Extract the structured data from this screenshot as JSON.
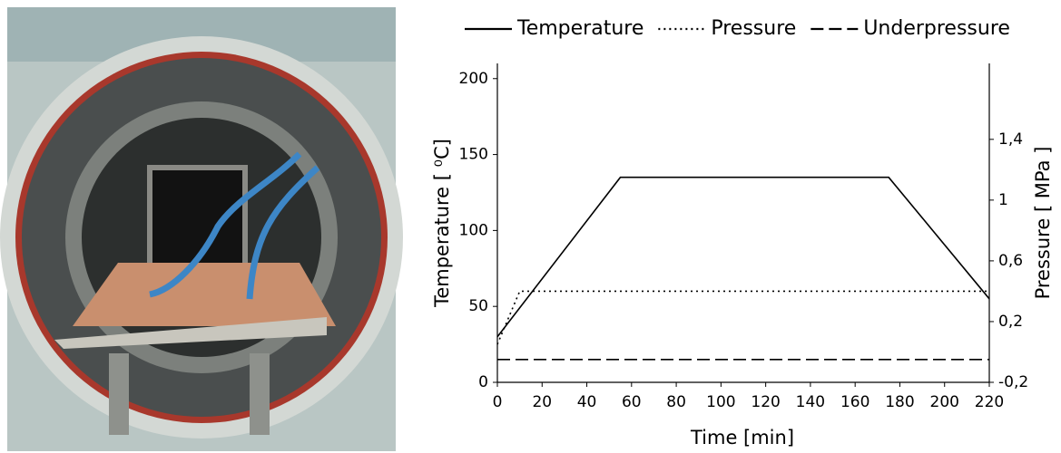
{
  "chart_data": {
    "type": "line",
    "xlabel": "Time [min]",
    "ylabel": "Temperature [ ⁰C]",
    "y2label": "Pressure [ MPa ]",
    "xlim": [
      0,
      220
    ],
    "xticks": [
      0,
      20,
      40,
      60,
      80,
      100,
      120,
      140,
      160,
      180,
      200,
      220
    ],
    "ylim": [
      0,
      210
    ],
    "yticks": [
      0,
      50,
      100,
      150,
      200
    ],
    "y2lim": [
      -0.2,
      1.9
    ],
    "y2ticks": [
      {
        "value": -0.2,
        "label": "-0,2"
      },
      {
        "value": 0.2,
        "label": "0,2"
      },
      {
        "value": 0.6,
        "label": "0,6"
      },
      1,
      {
        "value": 1.4,
        "label": "1,4"
      }
    ],
    "grid": false,
    "legend": "top",
    "series": [
      {
        "name": "Temperature",
        "color": "#000000",
        "dash": "solid",
        "x": [
          0,
          55,
          175,
          220
        ],
        "values": [
          30,
          135,
          135,
          55
        ]
      },
      {
        "name": "Pressure",
        "color": "#000000",
        "dash": "dotted",
        "axis": "y2",
        "x": [
          0,
          10,
          220
        ],
        "values": [
          0.05,
          0.4,
          0.4
        ]
      },
      {
        "name": "Underpressure",
        "color": "#000000",
        "dash": "dashed",
        "axis": "y2",
        "x": [
          0,
          220
        ],
        "values": [
          -0.05,
          -0.05
        ]
      }
    ]
  }
}
